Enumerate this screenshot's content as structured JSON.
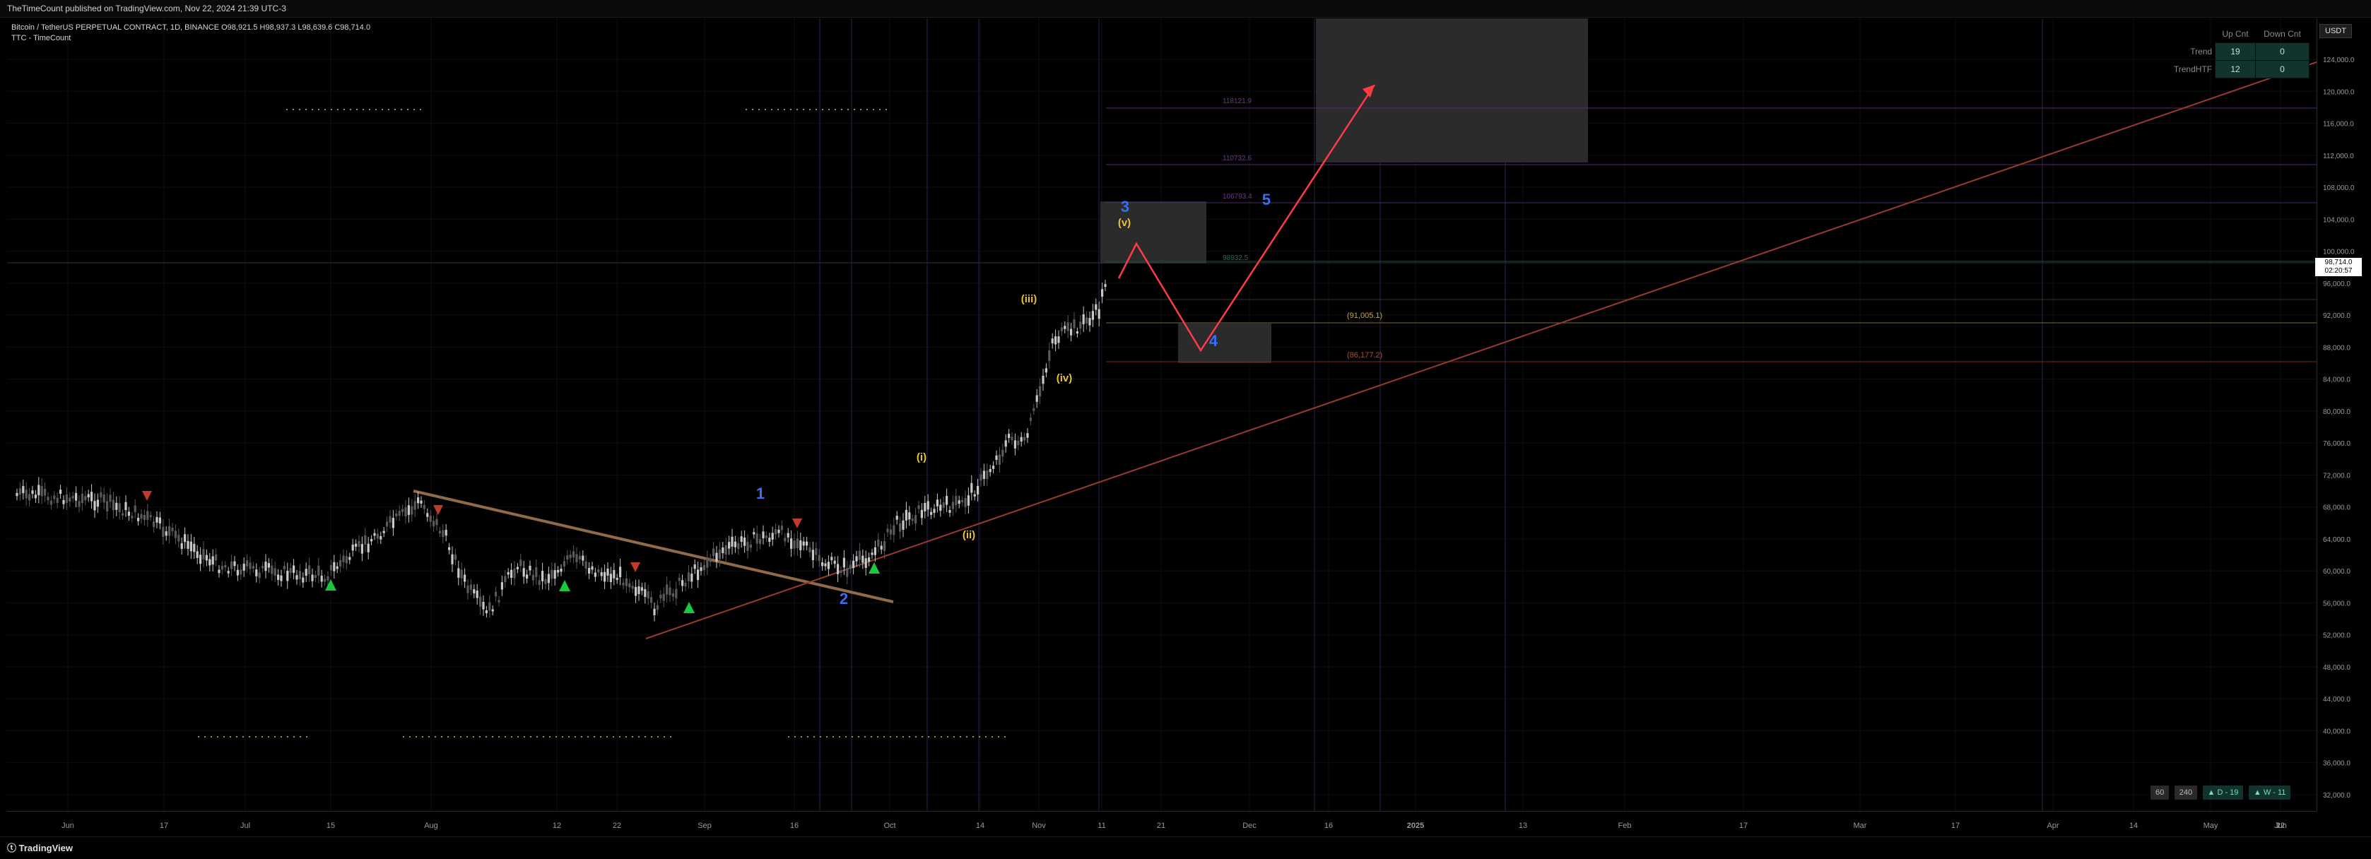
{
  "header": {
    "published_text": "TheTimeCount published on TradingView.com, Nov 22, 2024 21:39 UTC-3"
  },
  "legend": {
    "symbol_line": "Bitcoin / TetherUS PERPETUAL CONTRACT, 1D, BINANCE  O98,921.5  H98,937.3  L98,639.6  C98,714.0",
    "indicator_line": "TTC - TimeCount"
  },
  "currency_button": "USDT",
  "info_table": {
    "headers": [
      "",
      "Up Cnt",
      "Down Cnt"
    ],
    "rows": [
      {
        "label": "Trend",
        "up": "19",
        "down": "0"
      },
      {
        "label": "TrendHTF",
        "up": "12",
        "down": "0"
      }
    ]
  },
  "price_scale": {
    "labels": [
      "124,000.0",
      "120,000.0",
      "116,000.0",
      "112,000.0",
      "108,000.0",
      "104,000.0",
      "100,000.0",
      "96,000.0",
      "92,000.0",
      "88,000.0",
      "84,000.0",
      "80,000.0",
      "76,000.0",
      "72,000.0",
      "68,000.0",
      "64,000.0",
      "60,000.0",
      "56,000.0",
      "52,000.0",
      "48,000.0",
      "44,000.0",
      "40,000.0",
      "36,000.0",
      "32,000.0"
    ],
    "current_price": "98,714.0",
    "countdown": "02:20:57"
  },
  "time_axis": {
    "labels": [
      "Jun",
      "17",
      "Jul",
      "15",
      "Aug",
      "12",
      "22",
      "Sep",
      "16",
      "Oct",
      "14",
      "Nov",
      "11",
      "21",
      "Dec",
      "16",
      "2025",
      "13",
      "Feb",
      "17",
      "Mar",
      "17",
      "Apr",
      "14",
      "May",
      "12",
      "22",
      "Jun"
    ]
  },
  "fib_labels": {
    "upper": [
      "118121.9",
      "110732.6",
      "106793.4"
    ],
    "mid": [
      "98932.5"
    ],
    "support": [
      "(91,005.1)",
      "(86,177.2)"
    ]
  },
  "wave_labels": {
    "primary": [
      "1",
      "2",
      "3",
      "4",
      "5"
    ],
    "minor": [
      "(i)",
      "(ii)",
      "(iii)",
      "(iv)",
      "(v)"
    ]
  },
  "badges": [
    "60",
    "240",
    "▲ D - 19",
    "▲ W - 11"
  ],
  "footer": {
    "brand": "TradingView"
  },
  "colors": {
    "background": "#000000",
    "up_candle": "#c8c8c8",
    "down_candle": "#5a5a5a",
    "wave_primary": "#3a6df0",
    "wave_minor": "#e8c23a",
    "projection_arrow": "#ff3b45",
    "trend_line": "#8f6b4a",
    "channel_line": "#9a3a2e",
    "green_marker": "#18c940",
    "red_marker": "#c23a2a"
  }
}
